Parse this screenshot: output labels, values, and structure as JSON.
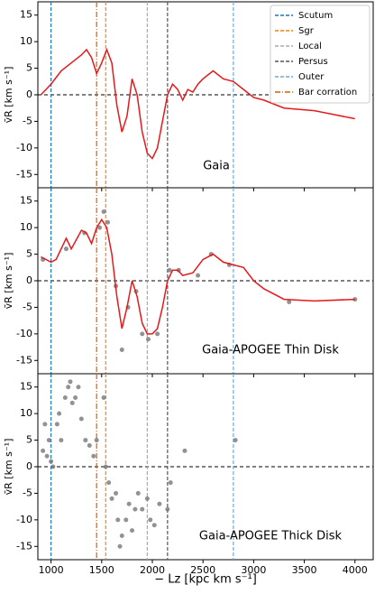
{
  "chart_data": [
    {
      "type": "line",
      "text": "Gaia",
      "color": "#e41a1c",
      "x": [
        900,
        950,
        1000,
        1100,
        1200,
        1300,
        1350,
        1400,
        1450,
        1500,
        1550,
        1600,
        1650,
        1700,
        1750,
        1800,
        1850,
        1900,
        1950,
        2000,
        2050,
        2100,
        2150,
        2200,
        2250,
        2300,
        2350,
        2400,
        2450,
        2500,
        2600,
        2700,
        2800,
        2900,
        3000,
        3100,
        3300,
        3600,
        4000
      ],
      "values": [
        0,
        1,
        2,
        4.5,
        6,
        7.5,
        8.5,
        7,
        4,
        6,
        8.5,
        6,
        -2,
        -7,
        -4,
        3,
        0,
        -7,
        -11,
        -12,
        -10,
        -5,
        0,
        2,
        1,
        -1,
        1,
        0.5,
        2,
        3,
        4.5,
        3,
        2.5,
        1,
        -0.5,
        -1,
        -2.5,
        -3,
        -4.5
      ],
      "xlim": [
        870,
        4180
      ],
      "ylim": [
        -17.5,
        17.5
      ],
      "yticks": [
        -15,
        -10,
        -5,
        0,
        5,
        10,
        15
      ],
      "legend": "upper right",
      "vlines": [
        {
          "name": "Scutum",
          "x": 1000,
          "color": "#1f77b4",
          "style": "dashed"
        },
        {
          "name": "Sgr",
          "x": 1540,
          "color": "#ff7f0e",
          "style": "dashed"
        },
        {
          "name": "Local",
          "x": 1950,
          "color": "#aaaaaa",
          "style": "dashed"
        },
        {
          "name": "Persus",
          "x": 2150,
          "color": "#555555",
          "style": "dashed"
        },
        {
          "name": "Outer",
          "x": 2800,
          "color": "#6baed6",
          "style": "dashed"
        },
        {
          "name": "Bar corration",
          "x": 1450,
          "color": "#d95f02",
          "style": "dashdot"
        }
      ],
      "ylabel": "v̄R [km s⁻¹]"
    },
    {
      "type": "line",
      "text": "Gaia-APOGEE Thin Disk",
      "color": "#e41a1c",
      "x": [
        900,
        1000,
        1050,
        1150,
        1200,
        1300,
        1350,
        1400,
        1450,
        1500,
        1550,
        1600,
        1650,
        1700,
        1750,
        1800,
        1850,
        1900,
        1950,
        2000,
        2050,
        2100,
        2150,
        2200,
        2250,
        2300,
        2400,
        2500,
        2600,
        2700,
        2800,
        2900,
        3000,
        3100,
        3300,
        3600,
        4000
      ],
      "values": [
        4.5,
        3.5,
        4,
        8,
        6,
        9.5,
        9,
        7,
        10,
        11.5,
        10,
        5,
        -3,
        -9,
        -5,
        0,
        -3,
        -8,
        -10,
        -10,
        -9,
        -5,
        0,
        2,
        2,
        1,
        1.5,
        4,
        5,
        3.5,
        3,
        2.5,
        0,
        -1.5,
        -3.5,
        -3.8,
        -3.5
      ],
      "points": {
        "x": [
          920,
          1150,
          1330,
          1480,
          1520,
          1560,
          1640,
          1700,
          1760,
          1840,
          1900,
          1960,
          2050,
          2170,
          2260,
          2450,
          2580,
          2760,
          3350,
          4000
        ],
        "values": [
          4,
          6,
          9,
          10,
          13,
          11,
          -1,
          -13,
          -5,
          -2,
          -10,
          -11,
          -10,
          2,
          2,
          1,
          5,
          3,
          -4,
          -3.5
        ]
      },
      "ylim": [
        -17.5,
        17.5
      ],
      "yticks": [
        -15,
        -10,
        -5,
        0,
        5,
        10,
        15
      ],
      "ylabel": "v̄R [km s⁻¹]"
    },
    {
      "type": "scatter",
      "text": "Gaia-APOGEE Thick Disk",
      "color": "#777777",
      "x": [
        920,
        940,
        960,
        980,
        1000,
        1020,
        1060,
        1080,
        1100,
        1140,
        1170,
        1190,
        1210,
        1240,
        1270,
        1300,
        1340,
        1380,
        1420,
        1450,
        1520,
        1540,
        1570,
        1600,
        1640,
        1660,
        1680,
        1700,
        1740,
        1770,
        1800,
        1830,
        1860,
        1900,
        1950,
        1980,
        2020,
        2070,
        2150,
        2180,
        2320,
        2820
      ],
      "values": [
        3,
        8,
        2,
        5,
        1,
        0,
        8,
        10,
        5,
        13,
        15,
        16,
        12,
        13,
        15,
        9,
        5,
        4,
        2,
        5,
        13,
        0,
        -3,
        -6,
        -5,
        -10,
        -15,
        -13,
        -10,
        -7,
        -12,
        -8,
        -5,
        -8,
        -6,
        -10,
        -11,
        -7,
        -8,
        -3,
        3,
        5
      ],
      "ylim": [
        -17.5,
        17.5
      ],
      "yticks": [
        -15,
        -10,
        -5,
        0,
        5,
        10,
        15
      ],
      "ylabel": "v̄R [km s⁻¹]",
      "xticks": [
        1000,
        1500,
        2000,
        2500,
        3000,
        3500,
        4000
      ],
      "xlabel": "− Lz [kpc km s⁻¹]"
    }
  ]
}
